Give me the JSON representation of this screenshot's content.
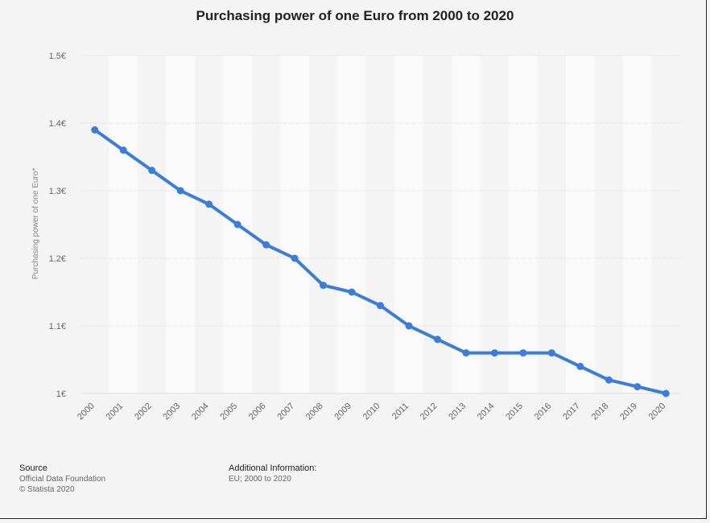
{
  "chart_data": {
    "type": "line",
    "title": "Purchasing power of one Euro from 2000 to 2020",
    "xlabel": "",
    "ylabel": "Purchasing power of one Euro*",
    "categories": [
      "2000",
      "2001",
      "2002",
      "2003",
      "2004",
      "2005",
      "2006",
      "2007",
      "2008",
      "2009",
      "2010",
      "2011",
      "2012",
      "2013",
      "2014",
      "2015",
      "2016",
      "2017",
      "2018",
      "2019",
      "2020"
    ],
    "series": [
      {
        "values": [
          1.39,
          1.36,
          1.33,
          1.3,
          1.28,
          1.25,
          1.22,
          1.2,
          1.16,
          1.15,
          1.13,
          1.1,
          1.08,
          1.06,
          1.06,
          1.06,
          1.06,
          1.04,
          1.02,
          1.01,
          1.0
        ]
      }
    ],
    "yticks": [
      1.0,
      1.1,
      1.2,
      1.3,
      1.4,
      1.5
    ],
    "ytick_labels": [
      "1€",
      "1.1€",
      "1.2€",
      "1.3€",
      "1.4€",
      "1.5€"
    ],
    "ylim": [
      1.0,
      1.5
    ],
    "grid": true,
    "legend": "none",
    "colors": {
      "line": "#3b7dd8",
      "grid": "#dddddd",
      "band": "#fafafa"
    }
  },
  "footer": {
    "source_heading": "Source",
    "source_lines": [
      "Official Data Foundation",
      "© Statista 2020"
    ],
    "info_heading": "Additional Information:",
    "info_lines": [
      "EU; 2000 to 2020"
    ]
  }
}
